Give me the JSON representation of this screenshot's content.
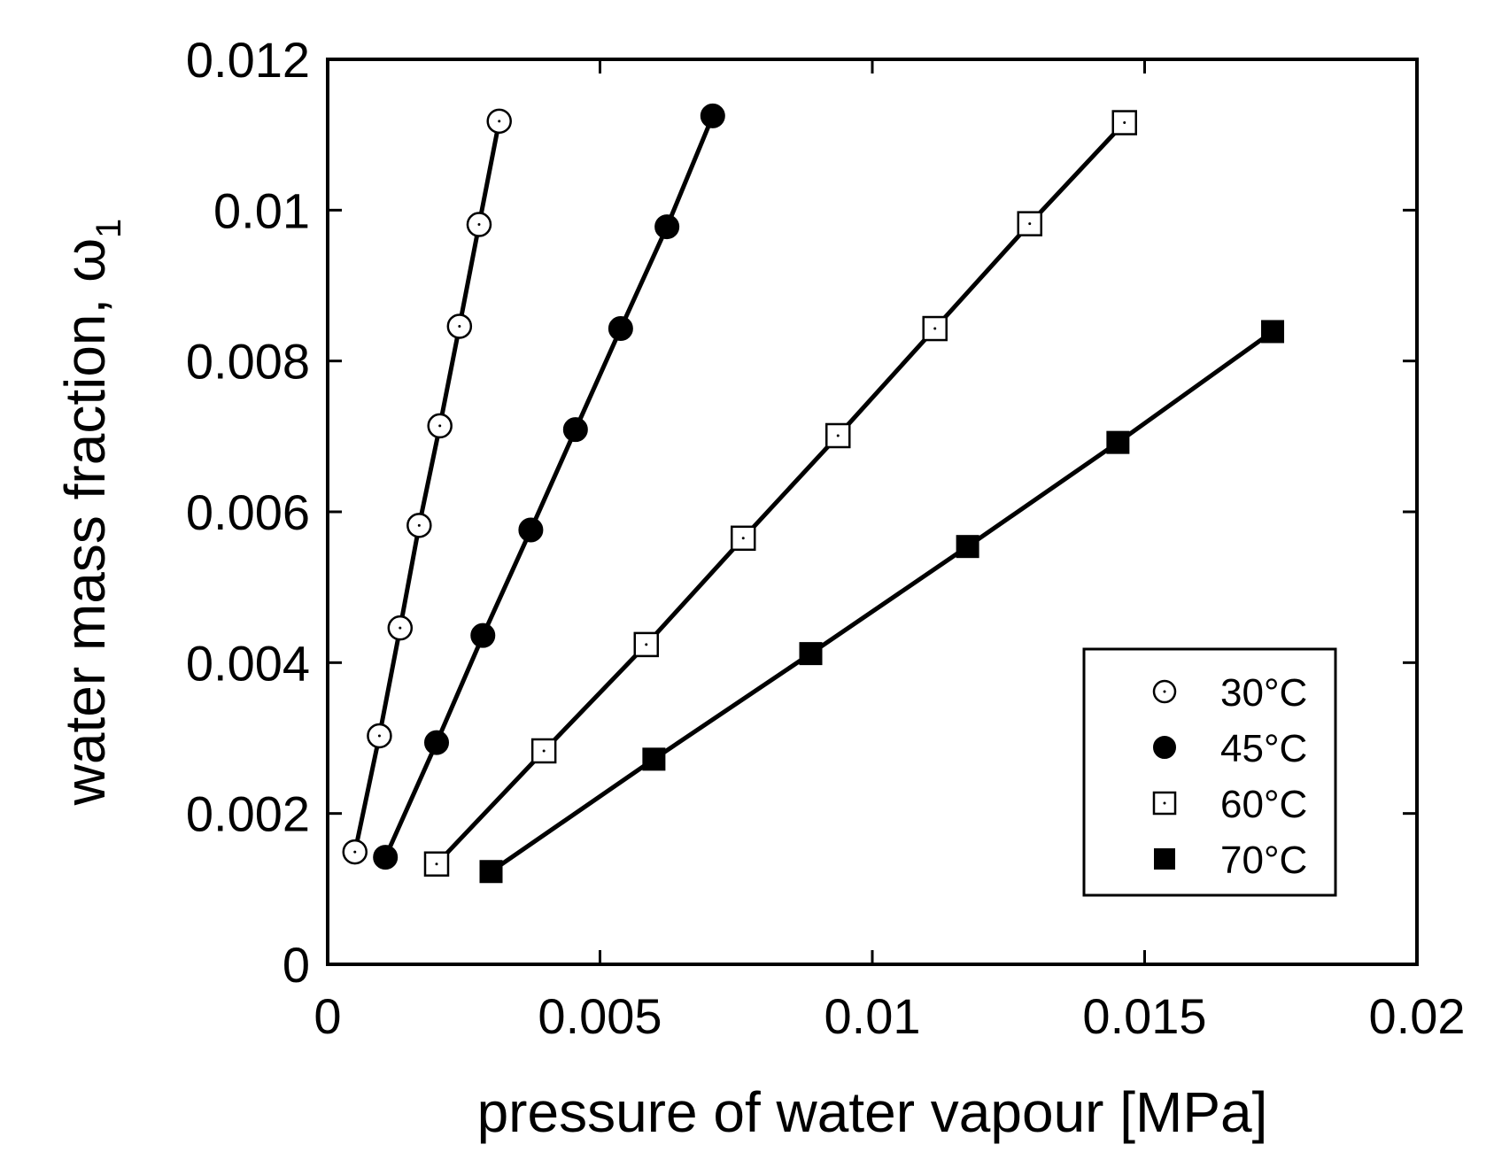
{
  "chart_data": {
    "type": "line",
    "xlabel": "pressure of water vapour [MPa]",
    "ylabel": "water mass fraction, ω",
    "ylabel_subscript": "1",
    "xlim": [
      0,
      0.02
    ],
    "ylim": [
      0,
      0.012
    ],
    "x_ticks": [
      0,
      0.005,
      0.01,
      0.015,
      0.02
    ],
    "x_tick_labels": [
      "0",
      "0.005",
      "0.01",
      "0.015",
      "0.02"
    ],
    "y_ticks": [
      0,
      0.002,
      0.004,
      0.006,
      0.008,
      0.01,
      0.012
    ],
    "y_tick_labels": [
      "0",
      "0.002",
      "0.004",
      "0.006",
      "0.008",
      "0.01",
      "0.012"
    ],
    "grid": false,
    "legend_position": "bottom-right",
    "series": [
      {
        "name": "30°C",
        "marker": "open-circle",
        "x": [
          0.0005,
          0.00095,
          0.00133,
          0.00168,
          0.00206,
          0.00242,
          0.00278,
          0.00315
        ],
        "y": [
          0.00149,
          0.00303,
          0.00446,
          0.00582,
          0.00714,
          0.00846,
          0.00981,
          0.01118
        ]
      },
      {
        "name": "45°C",
        "marker": "filled-circle",
        "x": [
          0.00106,
          0.002,
          0.00285,
          0.00373,
          0.00455,
          0.00538,
          0.00623,
          0.00707
        ],
        "y": [
          0.00142,
          0.00294,
          0.00436,
          0.00576,
          0.00709,
          0.00843,
          0.00978,
          0.01125
        ]
      },
      {
        "name": "60°C",
        "marker": "open-square",
        "x": [
          0.002,
          0.00397,
          0.00585,
          0.00763,
          0.00937,
          0.01115,
          0.01289,
          0.01463
        ],
        "y": [
          0.00133,
          0.00283,
          0.00424,
          0.00565,
          0.00701,
          0.00843,
          0.00982,
          0.01116
        ]
      },
      {
        "name": "70°C",
        "marker": "filled-square",
        "x": [
          0.003,
          0.00599,
          0.00887,
          0.01175,
          0.01451,
          0.01735
        ],
        "y": [
          0.00123,
          0.00272,
          0.00412,
          0.00554,
          0.00692,
          0.00839
        ]
      }
    ]
  }
}
